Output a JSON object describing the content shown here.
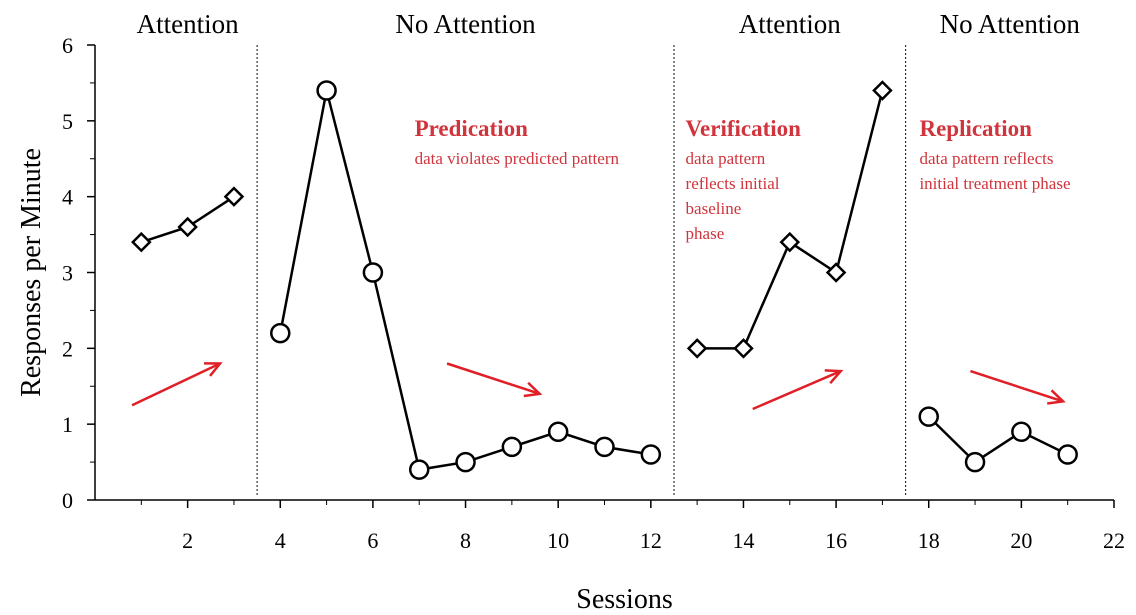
{
  "chart_data": {
    "type": "line",
    "xlabel": "Sessions",
    "ylabel": "Responses per Minute",
    "xlim": [
      0,
      22
    ],
    "ylim": [
      0,
      6
    ],
    "xticks": [
      2,
      4,
      6,
      8,
      10,
      12,
      14,
      16,
      18,
      20,
      22
    ],
    "yticks": [
      0,
      1,
      2,
      3,
      4,
      5,
      6
    ],
    "grid": false,
    "phase_boundaries": [
      3.5,
      12.5,
      17.5
    ],
    "phases": [
      {
        "label": "Attention",
        "x_center": 2
      },
      {
        "label": "No Attention",
        "x_center": 8
      },
      {
        "label": "Attention",
        "x_center": 15
      },
      {
        "label": "No Attention",
        "x_center": 19.75
      }
    ],
    "series": [
      {
        "marker": "diamond",
        "x": [
          1,
          2,
          3
        ],
        "y": [
          3.4,
          3.6,
          4.0
        ]
      },
      {
        "marker": "circle",
        "x": [
          4,
          5,
          6,
          7,
          8,
          9,
          10,
          11,
          12
        ],
        "y": [
          2.2,
          5.4,
          3.0,
          0.4,
          0.5,
          0.7,
          0.9,
          0.7,
          0.6
        ]
      },
      {
        "marker": "diamond",
        "x": [
          13,
          14,
          15,
          16,
          17
        ],
        "y": [
          2.0,
          2.0,
          3.4,
          3.0,
          5.4
        ]
      },
      {
        "marker": "circle",
        "x": [
          18,
          19,
          20,
          21
        ],
        "y": [
          1.1,
          0.5,
          0.9,
          0.6
        ]
      }
    ],
    "annotations": [
      {
        "title": "Predication",
        "lines": [
          "data violates predicted pattern"
        ],
        "x": 6.9,
        "y": 4.8
      },
      {
        "title": "Verification",
        "lines": [
          "data pattern",
          "reflects initial",
          "baseline",
          "phase"
        ],
        "x": 12.75,
        "y": 4.8
      },
      {
        "title": "Replication",
        "lines": [
          "data pattern reflects",
          "initial treatment phase"
        ],
        "x": 17.8,
        "y": 4.8
      }
    ],
    "trend_arrows": [
      {
        "from": [
          0.8,
          1.25
        ],
        "to": [
          2.7,
          1.8
        ]
      },
      {
        "from": [
          7.6,
          1.8
        ],
        "to": [
          9.6,
          1.4
        ]
      },
      {
        "from": [
          14.2,
          1.2
        ],
        "to": [
          16.1,
          1.7
        ]
      },
      {
        "from": [
          18.9,
          1.7
        ],
        "to": [
          20.9,
          1.3
        ]
      }
    ],
    "colors": {
      "line": "#000000",
      "annotation": "#d0343c",
      "arrow": "#e01f26",
      "phase_line": "#333333"
    }
  }
}
